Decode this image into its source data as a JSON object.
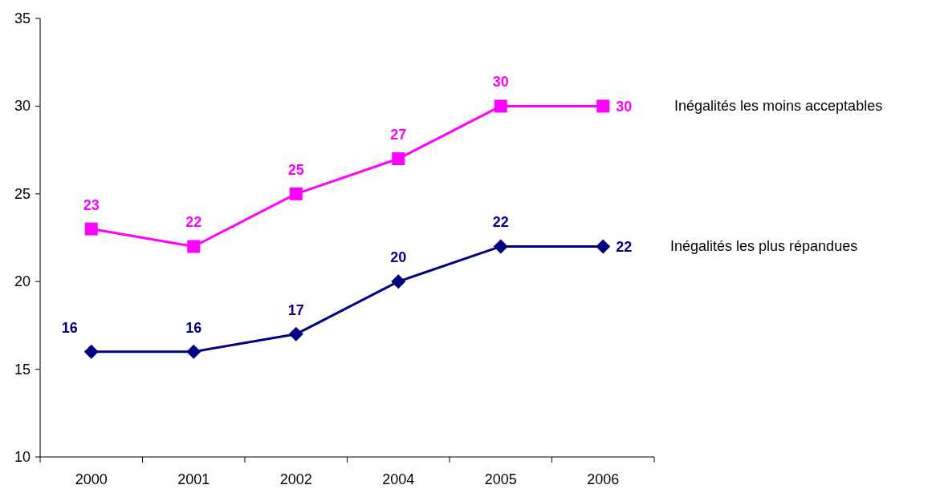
{
  "chart_data": {
    "type": "line",
    "categories": [
      "2000",
      "2001",
      "2002",
      "2004",
      "2005",
      "2006"
    ],
    "series": [
      {
        "name": "Inégalités les moins acceptables",
        "color": "#ff00ff",
        "marker": "square",
        "values": [
          23,
          22,
          25,
          27,
          30,
          30
        ]
      },
      {
        "name": "Inégalités les plus répandues",
        "color": "#000080",
        "marker": "diamond",
        "values": [
          16,
          16,
          17,
          20,
          22,
          22
        ]
      }
    ],
    "ylim": [
      10,
      35
    ],
    "yticks": [
      10,
      15,
      20,
      25,
      30,
      35
    ],
    "grid": false,
    "data_labels": true,
    "line_style": "solid"
  }
}
